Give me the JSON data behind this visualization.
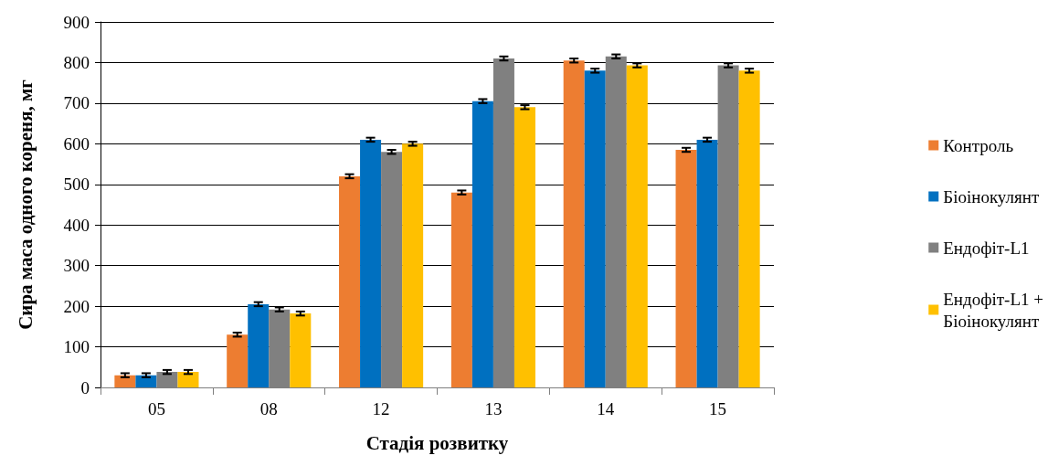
{
  "chart_data": {
    "type": "bar",
    "xlabel": "Стадія розвитку",
    "ylabel": "Сира маса одного кореня, мг",
    "categories": [
      "05",
      "08",
      "12",
      "13",
      "14",
      "15"
    ],
    "series": [
      {
        "name": "Контроль",
        "color": "#ed7d31",
        "values": [
          30,
          130,
          520,
          480,
          805,
          585
        ],
        "errors": [
          5,
          5,
          5,
          5,
          5,
          5
        ]
      },
      {
        "name": "Біоінокулянт",
        "color": "#0070c0",
        "values": [
          30,
          205,
          610,
          705,
          780,
          610
        ],
        "errors": [
          5,
          5,
          5,
          5,
          5,
          5
        ]
      },
      {
        "name": "Ендофіт-L1",
        "color": "#808080",
        "values": [
          38,
          192,
          580,
          810,
          815,
          793
        ],
        "errors": [
          5,
          5,
          5,
          5,
          5,
          5
        ]
      },
      {
        "name": "Ендофіт-L1 + Біоінокулянт",
        "color": "#ffc000",
        "values": [
          38,
          182,
          600,
          690,
          793,
          780
        ],
        "errors": [
          5,
          5,
          5,
          5,
          5,
          5
        ]
      }
    ],
    "ylim": [
      0,
      900
    ],
    "yticks": [
      0,
      100,
      200,
      300,
      400,
      500,
      600,
      700,
      800,
      900
    ],
    "grid": "y",
    "legend": "right"
  }
}
